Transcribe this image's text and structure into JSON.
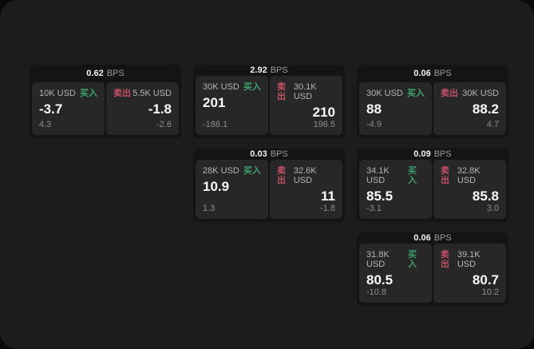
{
  "labels": {
    "bps_unit": "BPS",
    "buy": "买入",
    "sell": "卖出"
  },
  "colors": {
    "buy_green": "#3ea26c",
    "sell_red": "#c25064",
    "page_background": "#1c1c1c",
    "card_background": "#141414",
    "panel_background": "#272727"
  },
  "cards": [
    {
      "row": 1,
      "col": 1,
      "bps": "0.62",
      "buy": {
        "notional": "10K USD",
        "value": "-3.7",
        "sub": "4.3"
      },
      "sell": {
        "notional": "5.5K USD",
        "value": "-1.8",
        "sub": "-2.6"
      }
    },
    {
      "row": 1,
      "col": 2,
      "bps": "2.92",
      "buy": {
        "notional": "30K USD",
        "value": "201",
        "sub": "-188.1"
      },
      "sell": {
        "notional": "30.1K USD",
        "value": "210",
        "sub": "196.5"
      }
    },
    {
      "row": 1,
      "col": 3,
      "bps": "0.06",
      "buy": {
        "notional": "30K USD",
        "value": "88",
        "sub": "-4.9"
      },
      "sell": {
        "notional": "30K USD",
        "value": "88.2",
        "sub": "4.7"
      }
    },
    {
      "row": 2,
      "col": 2,
      "bps": "0.03",
      "buy": {
        "notional": "28K USD",
        "value": "10.9",
        "sub": "1.3"
      },
      "sell": {
        "notional": "32.6K USD",
        "value": "11",
        "sub": "-1.8"
      }
    },
    {
      "row": 2,
      "col": 3,
      "bps": "0.09",
      "buy": {
        "notional": "34.1K USD",
        "value": "85.5",
        "sub": "-3.1"
      },
      "sell": {
        "notional": "32.8K USD",
        "value": "85.8",
        "sub": "3.0"
      }
    },
    {
      "row": 3,
      "col": 3,
      "bps": "0.06",
      "buy": {
        "notional": "31.8K USD",
        "value": "80.5",
        "sub": "-10.8"
      },
      "sell": {
        "notional": "39.1K USD",
        "value": "80.7",
        "sub": "10.2"
      }
    }
  ]
}
